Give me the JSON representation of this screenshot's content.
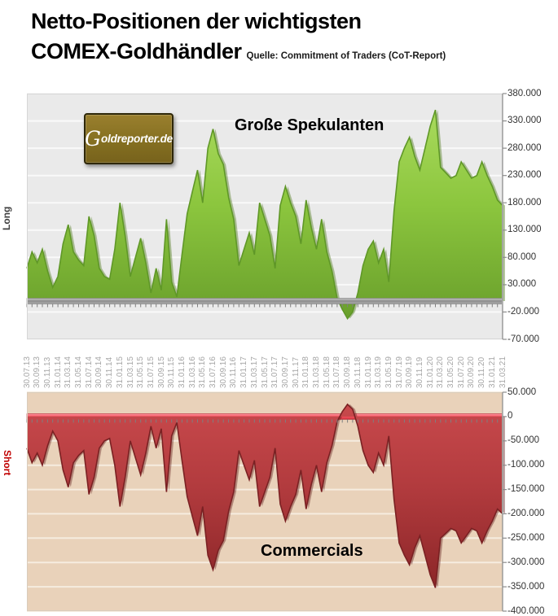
{
  "title": {
    "line1": "Netto-Positionen der wichtigsten",
    "line2": "COMEX-Goldhändler",
    "source": "Quelle: Commitment of Traders (CoT-Report)"
  },
  "logo": {
    "initial": "G",
    "rest": "oldreporter.de"
  },
  "colors": {
    "green_fill": "#8CC63E",
    "green_light": "#A9DA5D",
    "green_dark": "#699F2B",
    "green_stroke": "#5F9727",
    "green_shadow": "rgba(88,128,40,0.45)",
    "red_fill": "#B23B3E",
    "red_light": "#C8494C",
    "red_dark": "#8C2628",
    "red_stroke": "#7A2123",
    "red_shadow": "rgba(96,24,24,0.4)",
    "zero_bar_gray": "#9A9A9A",
    "zero_band_red": "#F5525E",
    "top_plot_bg": "#EAEAEA",
    "top_grid": "#F9F9F9",
    "bottom_plot_bg": "#E9D2BA",
    "bottom_grid": "#F6ECDF",
    "axis_line": "#8C8C8C",
    "x_label_gray": "#A6A6A6",
    "short_label_red": "#C00000",
    "logo_gold": "#857021"
  },
  "chart_data": [
    {
      "id": "spek",
      "type": "area",
      "title": "Große Spekulanten",
      "side_label": "Long",
      "ylim": [
        -70000,
        380000
      ],
      "grid": true,
      "legend_position": "none",
      "ytick_values": [
        380000,
        330000,
        280000,
        230000,
        180000,
        130000,
        80000,
        30000,
        -20000,
        -70000
      ],
      "ytick_labels": [
        "380.000",
        "330.000",
        "280.000",
        "230.000",
        "180.000",
        "130.000",
        "80.000",
        "30.000",
        "-20.000",
        "-70.000"
      ],
      "x_axis_note": "monthly points Jul 2013 – Mar 2021, labels every 2nd month",
      "x_categories": [
        "30.07.13",
        "30.09.13",
        "30.11.13",
        "31.01.14",
        "31.03.14",
        "31.05.14",
        "31.07.14",
        "30.09.14",
        "30.11.14",
        "31.01.15",
        "31.03.15",
        "31.05.15",
        "31.07.15",
        "30.09.15",
        "30.11.15",
        "31.01.16",
        "31.03.16",
        "31.05.16",
        "31.07.16",
        "30.09.16",
        "30.11.16",
        "31.01.17",
        "31.03.17",
        "31.05.17",
        "31.07.17",
        "30.09.17",
        "30.11.17",
        "31.01.18",
        "31.03.18",
        "31.05.18",
        "31.07.18",
        "30.09.18",
        "30.11.18",
        "31.01.19",
        "31.03.19",
        "31.05.19",
        "31.07.19",
        "30.09.19",
        "30.11.19",
        "31.01.20",
        "31.03.20",
        "31.05.20",
        "31.07.20",
        "30.09.20",
        "30.11.20",
        "31.01.21",
        "31.03.21"
      ],
      "values": [
        60000,
        90000,
        70000,
        95000,
        55000,
        25000,
        45000,
        105000,
        140000,
        90000,
        75000,
        65000,
        155000,
        120000,
        60000,
        45000,
        40000,
        95000,
        180000,
        120000,
        45000,
        80000,
        115000,
        70000,
        15000,
        60000,
        20000,
        150000,
        35000,
        8000,
        85000,
        160000,
        200000,
        240000,
        180000,
        280000,
        315000,
        270000,
        250000,
        190000,
        150000,
        65000,
        95000,
        125000,
        85000,
        180000,
        150000,
        120000,
        60000,
        175000,
        210000,
        180000,
        155000,
        105000,
        185000,
        135000,
        95000,
        150000,
        90000,
        55000,
        5000,
        -15000,
        -32000,
        -20000,
        15000,
        65000,
        95000,
        110000,
        70000,
        95000,
        35000,
        165000,
        255000,
        280000,
        300000,
        265000,
        240000,
        280000,
        320000,
        350000,
        245000,
        235000,
        225000,
        230000,
        255000,
        240000,
        225000,
        230000,
        255000,
        230000,
        210000,
        185000,
        175000
      ]
    },
    {
      "id": "comm",
      "type": "area",
      "title": "Commercials",
      "side_label": "Short",
      "ylim": [
        -400000,
        50000
      ],
      "grid": true,
      "legend_position": "none",
      "ytick_values": [
        50000,
        0,
        -50000,
        -100000,
        -150000,
        -200000,
        -250000,
        -300000,
        -350000,
        -400000
      ],
      "ytick_labels": [
        "50.000",
        "0",
        "-50.000",
        "-100.000",
        "-150.000",
        "-200.000",
        "-250.000",
        "-300.000",
        "-350.000",
        "-400.000"
      ],
      "x_axis_note": "same x axis as speculator chart (labels shown between the two charts)",
      "x_categories": [
        "30.07.13",
        "30.09.13",
        "30.11.13",
        "31.01.14",
        "31.03.14",
        "31.05.14",
        "31.07.14",
        "30.09.14",
        "30.11.14",
        "31.01.15",
        "31.03.15",
        "31.05.15",
        "31.07.15",
        "30.09.15",
        "30.11.15",
        "31.01.16",
        "31.03.16",
        "31.05.16",
        "31.07.16",
        "30.09.16",
        "30.11.16",
        "31.01.17",
        "31.03.17",
        "31.05.17",
        "31.07.17",
        "30.09.17",
        "30.11.17",
        "31.01.18",
        "31.03.18",
        "31.05.18",
        "31.07.18",
        "30.09.18",
        "30.11.18",
        "31.01.19",
        "31.03.19",
        "31.05.19",
        "31.07.19",
        "30.09.19",
        "30.11.19",
        "31.01.20",
        "31.03.20",
        "31.05.20",
        "31.07.20",
        "30.09.20",
        "30.11.20",
        "31.01.21",
        "31.03.21"
      ],
      "values": [
        -65000,
        -95000,
        -75000,
        -100000,
        -60000,
        -30000,
        -50000,
        -110000,
        -145000,
        -95000,
        -80000,
        -70000,
        -160000,
        -125000,
        -65000,
        -50000,
        -45000,
        -100000,
        -185000,
        -125000,
        -50000,
        -85000,
        -120000,
        -75000,
        -20000,
        -65000,
        -25000,
        -155000,
        -40000,
        -12000,
        -90000,
        -165000,
        -205000,
        -245000,
        -185000,
        -285000,
        -315000,
        -275000,
        -255000,
        -195000,
        -155000,
        -70000,
        -100000,
        -130000,
        -90000,
        -185000,
        -155000,
        -125000,
        -65000,
        -180000,
        -215000,
        -185000,
        -160000,
        -110000,
        -190000,
        -140000,
        -100000,
        -155000,
        -95000,
        -60000,
        -10000,
        10000,
        25000,
        15000,
        -20000,
        -70000,
        -100000,
        -115000,
        -75000,
        -100000,
        -40000,
        -170000,
        -260000,
        -285000,
        -305000,
        -270000,
        -245000,
        -285000,
        -325000,
        -352000,
        -250000,
        -240000,
        -230000,
        -235000,
        -260000,
        -245000,
        -230000,
        -235000,
        -260000,
        -235000,
        -215000,
        -190000,
        -200000
      ]
    }
  ]
}
